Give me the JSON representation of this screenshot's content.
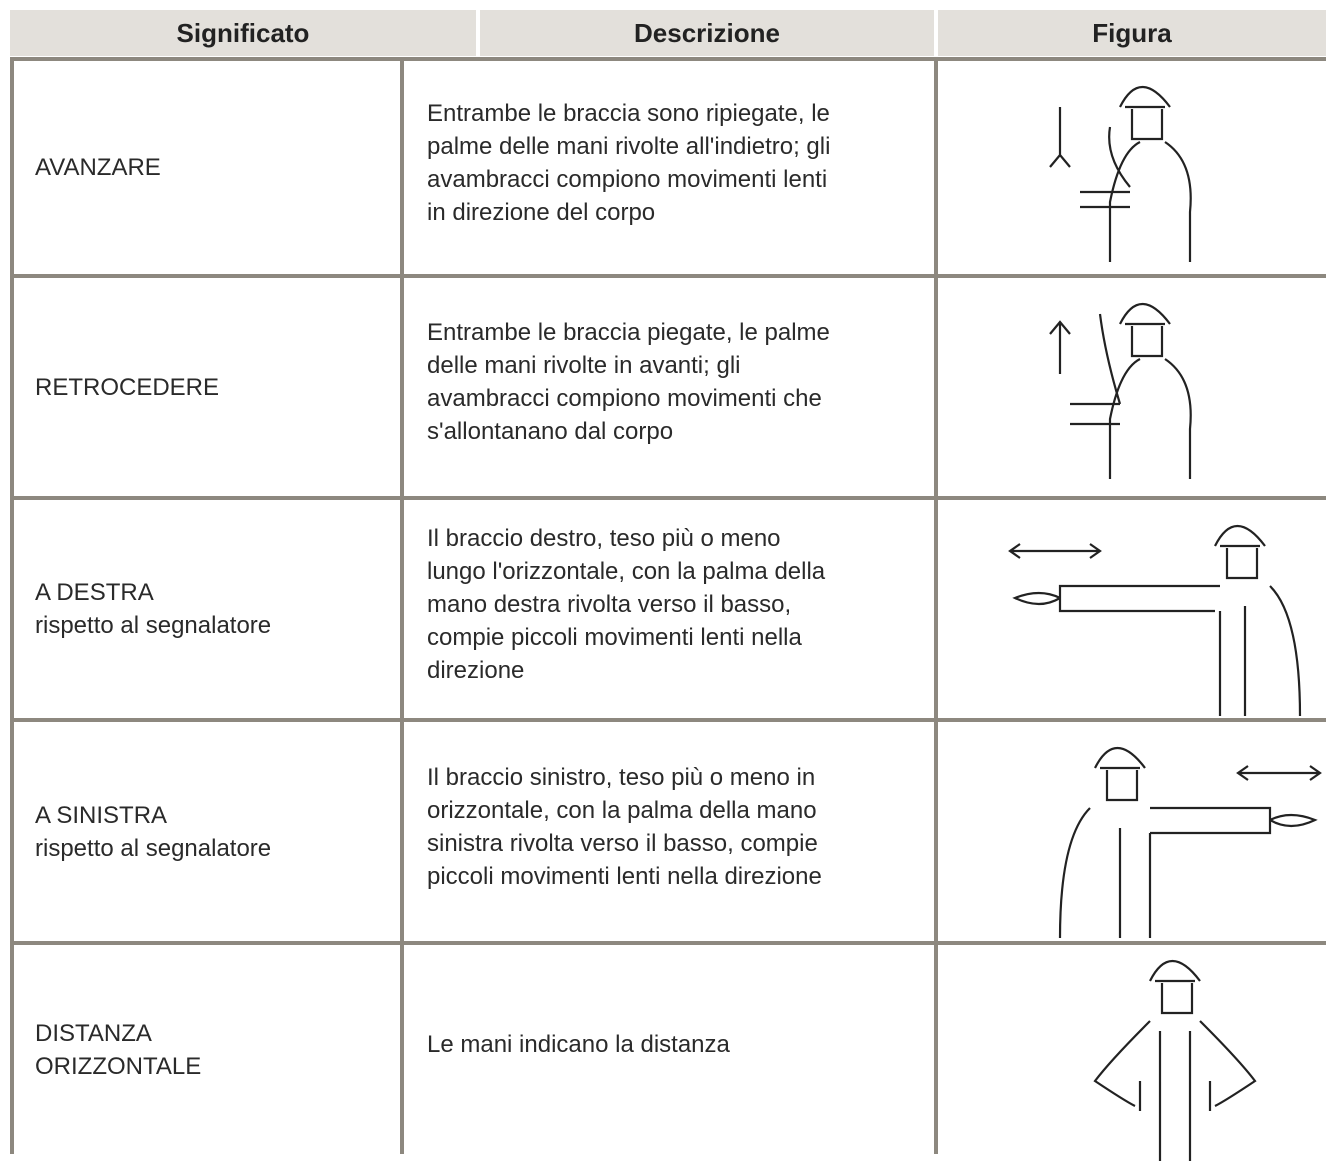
{
  "header": {
    "columns": [
      "Significato",
      "Descrizione",
      "Figura"
    ]
  },
  "table": {
    "rows": [
      {
        "meaning": [
          "AVANZARE"
        ],
        "description": [
          "Entrambe le braccia sono ripiegate, le",
          "palme delle mani rivolte all'indietro; gli",
          "avambracci compiono movimenti lenti",
          "in direzione del corpo"
        ]
      },
      {
        "meaning": [
          "RETROCEDERE"
        ],
        "description": [
          "Entrambe le braccia piegate, le palme",
          "delle mani rivolte in avanti; gli",
          "avambracci compiono movimenti che",
          "s'allontanano dal corpo"
        ]
      },
      {
        "meaning": [
          "A DESTRA",
          "rispetto al segnalatore"
        ],
        "description": [
          "Il braccio destro, teso più o meno",
          "lungo l'orizzontale, con la palma della",
          "mano destra rivolta verso il basso,",
          "compie piccoli movimenti lenti nella",
          "direzione"
        ]
      },
      {
        "meaning": [
          "A SINISTRA",
          "rispetto al segnalatore"
        ],
        "description": [
          "Il braccio sinistro, teso più o meno in",
          "orizzontale, con la palma della mano",
          "sinistra rivolta verso il basso, compie",
          "piccoli movimenti lenti nella direzione"
        ]
      },
      {
        "meaning": [
          "DISTANZA",
          "ORIZZONTALE"
        ],
        "description": [
          "Le mani indicano la distanza"
        ]
      }
    ]
  }
}
